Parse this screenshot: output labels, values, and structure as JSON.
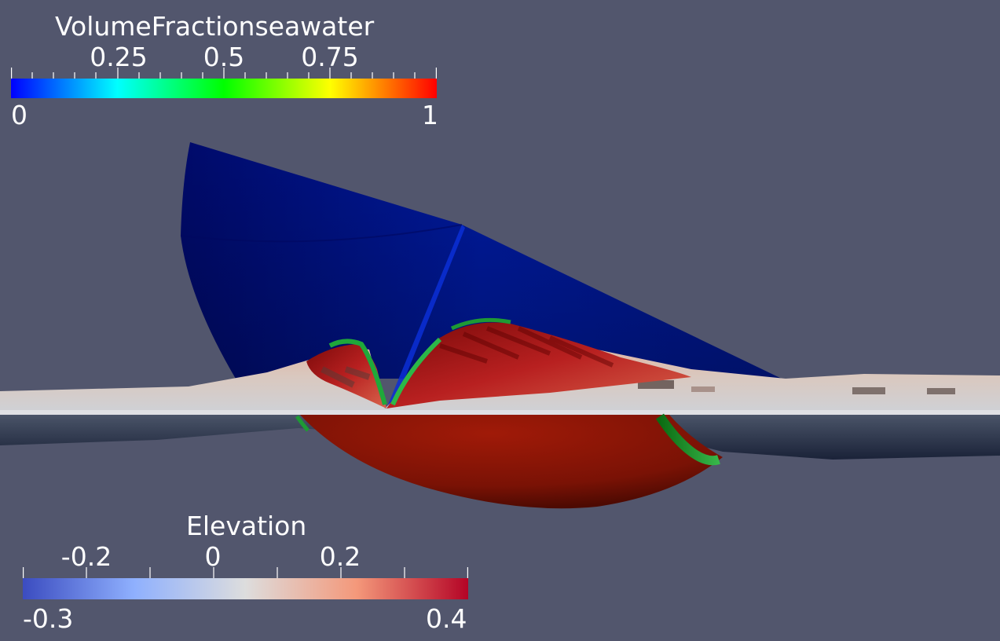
{
  "volume_fraction_legend": {
    "title": "VolumeFractionseawater",
    "min_label": "0",
    "max_label": "1",
    "tick_labels": [
      "0.25",
      "0.5",
      "0.75"
    ],
    "range": [
      0,
      1
    ],
    "ticks": [
      0.25,
      0.5,
      0.75
    ],
    "colormap": [
      "#0000ff",
      "#00ffff",
      "#00ff00",
      "#ffff00",
      "#ff0000"
    ]
  },
  "elevation_legend": {
    "title": "Elevation",
    "min_label": "-0.3",
    "max_label": "0.4",
    "tick_labels": [
      "-0.2",
      "0",
      "0.2"
    ],
    "range": [
      -0.3,
      0.4
    ],
    "ticks": [
      -0.2,
      0,
      0.2
    ],
    "colormap": [
      "#3b4cc0",
      "#dddddd",
      "#b40426"
    ]
  },
  "colors": {
    "background": "#52566d"
  }
}
